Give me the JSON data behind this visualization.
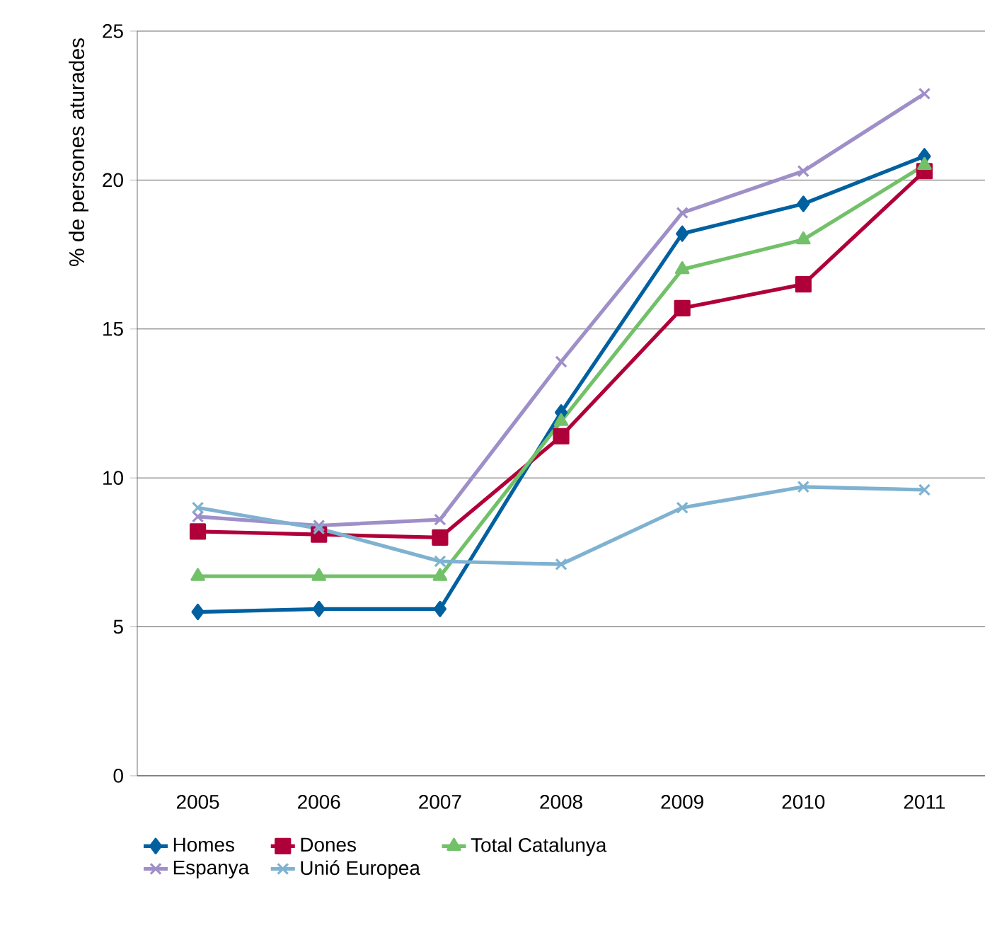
{
  "chart_data": {
    "type": "line",
    "ylabel": "% de persones aturades",
    "categories": [
      "2005",
      "2006",
      "2007",
      "2008",
      "2009",
      "2010",
      "2011"
    ],
    "series": [
      {
        "name": "Homes",
        "color": "#0060a0",
        "marker": "diamond",
        "values": [
          5.5,
          5.6,
          5.6,
          12.2,
          18.2,
          19.2,
          20.8
        ]
      },
      {
        "name": "Dones",
        "color": "#b0003a",
        "marker": "square",
        "values": [
          8.2,
          8.1,
          8.0,
          11.4,
          15.7,
          16.5,
          20.3
        ]
      },
      {
        "name": "Total Catalunya",
        "color": "#72c169",
        "marker": "triangle",
        "values": [
          6.7,
          6.7,
          6.7,
          11.9,
          17.0,
          18.0,
          20.5
        ]
      },
      {
        "name": "Espanya",
        "color": "#9e8fc8",
        "marker": "cross",
        "values": [
          8.7,
          8.4,
          8.6,
          13.9,
          18.9,
          20.3,
          22.9
        ]
      },
      {
        "name": "Unió Europea",
        "color": "#7fb2d0",
        "marker": "cross",
        "values": [
          9.0,
          8.3,
          7.2,
          7.1,
          9.0,
          9.7,
          9.6
        ]
      }
    ],
    "ylim": [
      0,
      25
    ],
    "yticks": [
      0,
      5,
      10,
      15,
      20,
      25
    ],
    "grid": "y",
    "legend": "bottom",
    "line_style": "solid"
  }
}
